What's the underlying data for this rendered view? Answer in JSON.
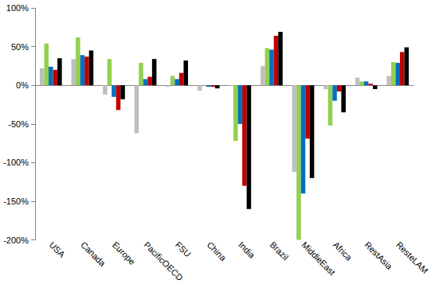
{
  "chart_data": {
    "type": "bar",
    "categories": [
      "USA",
      "Canada",
      "Europe",
      "PacificOECD",
      "FSU",
      "China",
      "India",
      "Brazil",
      "MiddleEast",
      "Africa",
      "RestAsia",
      "ResteLAM"
    ],
    "series": [
      {
        "color": "#BFBFBF",
        "values": [
          22,
          34,
          -12,
          -62,
          -2,
          -7,
          -1,
          25,
          -112,
          -5,
          10,
          12
        ]
      },
      {
        "color": "#92D050",
        "values": [
          54,
          62,
          34,
          29,
          12,
          0,
          -72,
          48,
          -200,
          -52,
          5,
          30
        ]
      },
      {
        "color": "#0070C0",
        "values": [
          24,
          39,
          -15,
          8,
          8,
          -2,
          -50,
          46,
          -140,
          -20,
          5,
          29
        ]
      },
      {
        "color": "#C00000",
        "values": [
          20,
          37,
          -32,
          11,
          16,
          -2,
          -130,
          64,
          -69,
          -8,
          2,
          43
        ]
      },
      {
        "color": "#000000",
        "values": [
          35,
          45,
          -18,
          34,
          32,
          -4,
          -160,
          69,
          -120,
          -35,
          -5,
          49
        ]
      }
    ],
    "ylim": [
      -200,
      100
    ],
    "yticks": [
      {
        "value": -200,
        "label": "-200%"
      },
      {
        "value": -150,
        "label": "-150%"
      },
      {
        "value": -100,
        "label": "-100%"
      },
      {
        "value": -50,
        "label": "-50%"
      },
      {
        "value": 0,
        "label": "0%"
      },
      {
        "value": 50,
        "label": "50%"
      },
      {
        "value": 100,
        "label": "100%"
      }
    ],
    "grid": false
  }
}
